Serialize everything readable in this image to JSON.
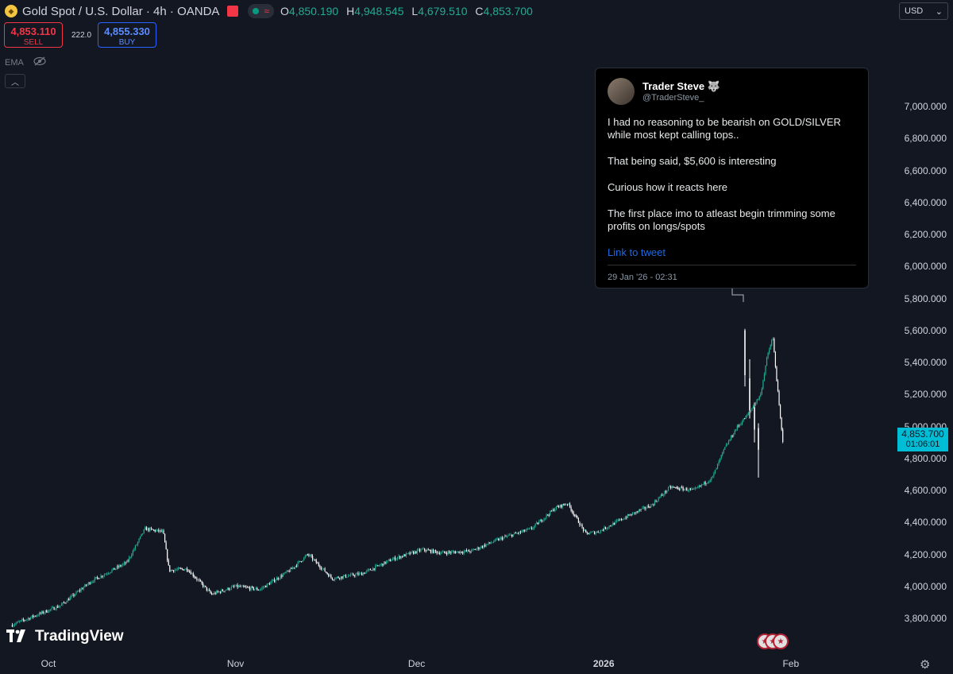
{
  "header": {
    "symbol": "Gold Spot / U.S. Dollar · 4h · OANDA",
    "ohlc": [
      {
        "label": "O",
        "value": "4,850.190"
      },
      {
        "label": "H",
        "value": "4,948.545"
      },
      {
        "label": "L",
        "value": "4,679.510"
      },
      {
        "label": "C",
        "value": "4,853.700"
      }
    ]
  },
  "trade": {
    "sell_price": "4,853.110",
    "sell_label": "SELL",
    "spread": "222.0",
    "buy_price": "4,855.330",
    "buy_label": "BUY"
  },
  "indicator": {
    "label": "EMA"
  },
  "currency": "USD",
  "price_tag": {
    "price": "4,853.700",
    "countdown": "01:06:01"
  },
  "brand": "TradingView",
  "tweet": {
    "name": "Trader Steve",
    "emoji": "🐺",
    "handle": "@TraderSteve_",
    "lines": [
      "I had no reasoning to be bearish on GOLD/SILVER while most kept calling tops..",
      "That being said, $5,600 is interesting",
      "Curious how it reacts here",
      "The first place imo to atleast begin trimming some profits on longs/spots"
    ],
    "link": "Link to tweet",
    "date": "29 Jan '26 - 02:31"
  },
  "colors": {
    "background": "#131722",
    "up": "#22ab94",
    "down": "#ffffff",
    "accent": "#00bcd4",
    "sell": "#f23645",
    "buy": "#2962ff"
  },
  "chart_data": {
    "type": "candlestick",
    "ylim": [
      3700,
      7100
    ],
    "y_ticks": [
      "3,800.000",
      "4,000.000",
      "4,200.000",
      "4,400.000",
      "4,600.000",
      "4,800.000",
      "5,000.000",
      "5,200.000",
      "5,400.000",
      "5,600.000",
      "5,800.000",
      "6,000.000",
      "6,200.000",
      "6,400.000",
      "6,600.000",
      "6,800.000",
      "7,000.000"
    ],
    "x_ticks": [
      "Oct",
      "Nov",
      "Dec",
      "2026",
      "Feb"
    ],
    "approx_closes": [
      {
        "date": "2025-09-25",
        "value": 3760
      },
      {
        "date": "2025-09-29",
        "value": 3820
      },
      {
        "date": "2025-10-03",
        "value": 3880
      },
      {
        "date": "2025-10-08",
        "value": 4030
      },
      {
        "date": "2025-10-14",
        "value": 4150
      },
      {
        "date": "2025-10-17",
        "value": 4360
      },
      {
        "date": "2025-10-20",
        "value": 4340
      },
      {
        "date": "2025-10-21",
        "value": 4100
      },
      {
        "date": "2025-10-24",
        "value": 4110
      },
      {
        "date": "2025-10-28",
        "value": 3950
      },
      {
        "date": "2025-11-01",
        "value": 4000
      },
      {
        "date": "2025-11-05",
        "value": 3980
      },
      {
        "date": "2025-11-10",
        "value": 4100
      },
      {
        "date": "2025-11-13",
        "value": 4200
      },
      {
        "date": "2025-11-17",
        "value": 4050
      },
      {
        "date": "2025-11-22",
        "value": 4080
      },
      {
        "date": "2025-11-27",
        "value": 4170
      },
      {
        "date": "2025-12-02",
        "value": 4230
      },
      {
        "date": "2025-12-05",
        "value": 4210
      },
      {
        "date": "2025-12-10",
        "value": 4220
      },
      {
        "date": "2025-12-15",
        "value": 4300
      },
      {
        "date": "2025-12-20",
        "value": 4360
      },
      {
        "date": "2025-12-24",
        "value": 4490
      },
      {
        "date": "2025-12-26",
        "value": 4520
      },
      {
        "date": "2025-12-29",
        "value": 4330
      },
      {
        "date": "2025-12-31",
        "value": 4340
      },
      {
        "date": "2026-01-05",
        "value": 4440
      },
      {
        "date": "2026-01-09",
        "value": 4510
      },
      {
        "date": "2026-01-12",
        "value": 4620
      },
      {
        "date": "2026-01-16",
        "value": 4600
      },
      {
        "date": "2026-01-19",
        "value": 4680
      },
      {
        "date": "2026-01-21",
        "value": 4860
      },
      {
        "date": "2026-01-23",
        "value": 4990
      },
      {
        "date": "2026-01-25",
        "value": 5080
      },
      {
        "date": "2026-01-27",
        "value": 5200
      },
      {
        "date": "2026-01-28",
        "value": 5420
      },
      {
        "date": "2026-01-29",
        "value": 5560
      },
      {
        "date": "2026-01-30",
        "value": 5150
      },
      {
        "date": "2026-01-30",
        "value": 4854
      }
    ]
  }
}
